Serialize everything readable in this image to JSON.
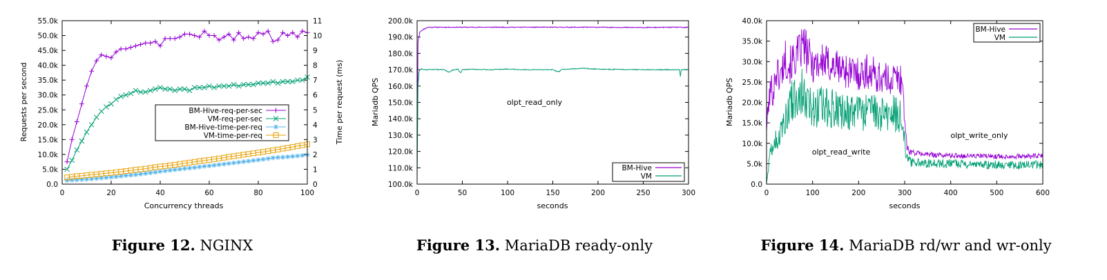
{
  "figures": [
    {
      "label": "Figure 12.",
      "caption": " NGINX"
    },
    {
      "label": "Figure 13.",
      "caption": " MariaDB ready-only"
    },
    {
      "label": "Figure 14.",
      "caption": " MariaDB rd/wr and wr-only"
    }
  ],
  "chart_data": [
    {
      "type": "line",
      "xlabel": "Concurrency threads",
      "ylabel": "Requests per second",
      "y2label": "Time per request (ms)",
      "xlim": [
        0,
        100
      ],
      "ylim": [
        0,
        55000
      ],
      "y2lim": [
        0,
        11
      ],
      "xticks": [
        0,
        20,
        40,
        60,
        80,
        100
      ],
      "xtick_labels": [
        "0",
        "20",
        "40",
        "60",
        "80",
        "100"
      ],
      "yticks": [
        0,
        5000,
        10000,
        15000,
        20000,
        25000,
        30000,
        35000,
        40000,
        45000,
        50000,
        55000
      ],
      "ytick_labels": [
        "0.0",
        "5.0k",
        "10.0k",
        "15.0k",
        "20.0k",
        "25.0k",
        "30.0k",
        "35.0k",
        "40.0k",
        "45.0k",
        "50.0k",
        "55.0k"
      ],
      "y2ticks": [
        0,
        1,
        2,
        3,
        4,
        5,
        6,
        7,
        8,
        9,
        10,
        11
      ],
      "y2tick_labels": [
        "0",
        "1",
        "2",
        "3",
        "4",
        "5",
        "6",
        "7",
        "8",
        "9",
        "10",
        "11"
      ],
      "legend_position": "center-right",
      "series": [
        {
          "name": "BM-Hive-req-per-sec",
          "axis": "y",
          "color": "#9400d3",
          "marker": "plus",
          "x": [
            2,
            4,
            6,
            8,
            10,
            12,
            14,
            16,
            18,
            20,
            22,
            24,
            26,
            28,
            30,
            32,
            34,
            36,
            38,
            40,
            42,
            44,
            46,
            48,
            50,
            52,
            54,
            56,
            58,
            60,
            62,
            64,
            66,
            68,
            70,
            72,
            74,
            76,
            78,
            80,
            82,
            84,
            86,
            88,
            90,
            92,
            94,
            96,
            98,
            100
          ],
          "values": [
            7500,
            15000,
            21000,
            27000,
            33000,
            38000,
            41500,
            43500,
            43000,
            42500,
            44500,
            45500,
            45500,
            46000,
            46500,
            47000,
            47500,
            47500,
            48000,
            46500,
            49000,
            49000,
            49000,
            49500,
            50500,
            50500,
            50000,
            49500,
            51500,
            50000,
            50000,
            48500,
            49500,
            50500,
            48500,
            51000,
            49000,
            49500,
            49000,
            51000,
            50500,
            51500,
            48000,
            48500,
            51000,
            50000,
            51000,
            49500,
            51500,
            51000
          ]
        },
        {
          "name": "VM-req-per-sec",
          "axis": "y",
          "color": "#009e73",
          "marker": "x",
          "x": [
            2,
            4,
            6,
            8,
            10,
            12,
            14,
            16,
            18,
            20,
            22,
            24,
            26,
            28,
            30,
            32,
            34,
            36,
            38,
            40,
            42,
            44,
            46,
            48,
            50,
            52,
            54,
            56,
            58,
            60,
            62,
            64,
            66,
            68,
            70,
            72,
            74,
            76,
            78,
            80,
            82,
            84,
            86,
            88,
            90,
            92,
            94,
            96,
            98,
            100
          ],
          "values": [
            5000,
            8000,
            11500,
            14500,
            17500,
            20000,
            22500,
            24500,
            26000,
            27000,
            28500,
            29500,
            30000,
            30500,
            31500,
            31000,
            31000,
            31500,
            32000,
            32500,
            32000,
            32000,
            31500,
            32000,
            32000,
            31500,
            32500,
            32500,
            32500,
            33000,
            32500,
            33000,
            33000,
            33000,
            33500,
            33000,
            33500,
            33500,
            33500,
            34000,
            34000,
            34000,
            34500,
            34000,
            34500,
            34500,
            34500,
            35000,
            35000,
            36000
          ]
        },
        {
          "name": "BM-Hive-time-per-req",
          "axis": "y2",
          "color": "#56b4e9",
          "marker": "star",
          "x": [
            2,
            4,
            6,
            8,
            10,
            12,
            14,
            16,
            18,
            20,
            22,
            24,
            26,
            28,
            30,
            32,
            34,
            36,
            38,
            40,
            42,
            44,
            46,
            48,
            50,
            52,
            54,
            56,
            58,
            60,
            62,
            64,
            66,
            68,
            70,
            72,
            74,
            76,
            78,
            80,
            82,
            84,
            86,
            88,
            90,
            92,
            94,
            96,
            98,
            100
          ],
          "values": [
            0.25,
            0.27,
            0.29,
            0.31,
            0.33,
            0.35,
            0.38,
            0.41,
            0.44,
            0.47,
            0.5,
            0.54,
            0.58,
            0.61,
            0.64,
            0.68,
            0.72,
            0.76,
            0.8,
            0.85,
            0.89,
            0.93,
            0.97,
            1.01,
            1.05,
            1.08,
            1.12,
            1.16,
            1.2,
            1.23,
            1.27,
            1.31,
            1.35,
            1.39,
            1.43,
            1.47,
            1.51,
            1.55,
            1.59,
            1.63,
            1.67,
            1.72,
            1.77,
            1.8,
            1.81,
            1.84,
            1.87,
            1.9,
            1.93,
            1.97
          ]
        },
        {
          "name": "VM-time-per-req",
          "axis": "y2",
          "color": "#e69f00",
          "marker": "square",
          "x": [
            2,
            4,
            6,
            8,
            10,
            12,
            14,
            16,
            18,
            20,
            22,
            24,
            26,
            28,
            30,
            32,
            34,
            36,
            38,
            40,
            42,
            44,
            46,
            48,
            50,
            52,
            54,
            56,
            58,
            60,
            62,
            64,
            66,
            68,
            70,
            72,
            74,
            76,
            78,
            80,
            82,
            84,
            86,
            88,
            90,
            92,
            94,
            96,
            98,
            100
          ],
          "values": [
            0.45,
            0.5,
            0.54,
            0.56,
            0.6,
            0.63,
            0.66,
            0.7,
            0.73,
            0.76,
            0.8,
            0.84,
            0.88,
            0.92,
            0.97,
            1.0,
            1.04,
            1.09,
            1.14,
            1.18,
            1.22,
            1.26,
            1.3,
            1.36,
            1.4,
            1.45,
            1.5,
            1.55,
            1.59,
            1.63,
            1.68,
            1.73,
            1.78,
            1.84,
            1.88,
            1.93,
            1.98,
            2.03,
            2.08,
            2.12,
            2.17,
            2.22,
            2.28,
            2.33,
            2.39,
            2.44,
            2.5,
            2.56,
            2.62,
            2.68
          ]
        }
      ]
    },
    {
      "type": "line",
      "xlabel": "seconds",
      "ylabel": "Mariadb QPS",
      "annotation": "olpt_read_only",
      "xlim": [
        0,
        300
      ],
      "ylim": [
        100000,
        200000
      ],
      "xticks": [
        0,
        50,
        100,
        150,
        200,
        250,
        300
      ],
      "xtick_labels": [
        "0",
        "50",
        "100",
        "150",
        "200",
        "250",
        "300"
      ],
      "yticks": [
        100000,
        110000,
        120000,
        130000,
        140000,
        150000,
        160000,
        170000,
        180000,
        190000,
        200000
      ],
      "ytick_labels": [
        "100.0k",
        "110.0k",
        "120.0k",
        "130.0k",
        "140.0k",
        "150.0k",
        "160.0k",
        "170.0k",
        "180.0k",
        "190.0k",
        "200.0k"
      ],
      "legend_position": "bottom-right",
      "series": [
        {
          "name": "BM-Hive",
          "color": "#9400d3",
          "x": [
            0,
            1,
            2,
            3,
            5,
            8,
            10,
            12,
            15,
            20,
            30,
            50,
            80,
            100,
            150,
            200,
            250,
            290,
            295,
            300
          ],
          "values": [
            110000,
            187000,
            190000,
            193000,
            194000,
            195000,
            195500,
            196000,
            196000,
            196000,
            196000,
            196000,
            196000,
            196000,
            196000,
            196000,
            195800,
            196000,
            195800,
            196000
          ]
        },
        {
          "name": "VM",
          "color": "#009e73",
          "x": [
            0,
            1,
            2,
            3,
            5,
            10,
            20,
            30,
            35,
            40,
            45,
            48,
            50,
            60,
            80,
            100,
            120,
            150,
            155,
            158,
            160,
            170,
            180,
            185,
            190,
            200,
            220,
            250,
            280,
            290,
            291,
            292,
            295,
            300
          ],
          "values": [
            104000,
            160000,
            168000,
            170000,
            170500,
            170000,
            170200,
            170000,
            168500,
            170000,
            170300,
            168000,
            170000,
            170300,
            170000,
            170400,
            170000,
            170000,
            168800,
            169000,
            170200,
            170500,
            170800,
            171000,
            170600,
            170300,
            170200,
            170000,
            170000,
            170000,
            166000,
            170000,
            170200,
            170000
          ]
        }
      ]
    },
    {
      "type": "line",
      "xlabel": "seconds",
      "ylabel": "Mariadb QPS",
      "annotations": [
        "olpt_read_write",
        "olpt_write_only"
      ],
      "xlim": [
        0,
        600
      ],
      "ylim": [
        0,
        40000
      ],
      "xticks": [
        0,
        100,
        200,
        300,
        400,
        500,
        600
      ],
      "xtick_labels": [
        "0",
        "100",
        "200",
        "300",
        "400",
        "500",
        "600"
      ],
      "yticks": [
        0,
        5000,
        10000,
        15000,
        20000,
        25000,
        30000,
        35000,
        40000
      ],
      "ytick_labels": [
        "0.0",
        "5.0k",
        "10.0k",
        "15.0k",
        "20.0k",
        "25.0k",
        "30.0k",
        "35.0k",
        "40.0k"
      ],
      "legend_position": "top-right",
      "series": [
        {
          "name": "BM-Hive",
          "color": "#9400d3",
          "x": [
            0,
            5,
            10,
            15,
            20,
            30,
            40,
            50,
            60,
            70,
            80,
            90,
            100,
            120,
            140,
            160,
            180,
            200,
            220,
            240,
            260,
            280,
            295,
            300,
            305,
            310,
            330,
            360,
            400,
            450,
            500,
            550,
            600
          ],
          "values": [
            14000,
            20000,
            24000,
            22000,
            28000,
            26000,
            31000,
            29000,
            30500,
            32000,
            34000,
            31500,
            29500,
            30000,
            29000,
            28500,
            27500,
            27000,
            27500,
            26500,
            25500,
            26000,
            25500,
            16000,
            9000,
            8000,
            7500,
            7200,
            7000,
            6900,
            6800,
            6800,
            6900
          ]
        },
        {
          "name": "VM",
          "color": "#009e73",
          "x": [
            0,
            5,
            10,
            15,
            20,
            30,
            40,
            50,
            60,
            70,
            80,
            90,
            100,
            120,
            140,
            160,
            180,
            200,
            220,
            240,
            260,
            280,
            295,
            300,
            305,
            310,
            330,
            360,
            400,
            450,
            500,
            550,
            600
          ],
          "values": [
            400,
            5000,
            9000,
            10000,
            10500,
            12000,
            16500,
            20000,
            21000,
            21500,
            22500,
            21000,
            19000,
            19000,
            18500,
            17500,
            17000,
            17500,
            17500,
            17000,
            16500,
            17500,
            17000,
            10000,
            6500,
            5500,
            5200,
            5000,
            5000,
            4800,
            4800,
            4600,
            4800
          ]
        }
      ]
    }
  ]
}
